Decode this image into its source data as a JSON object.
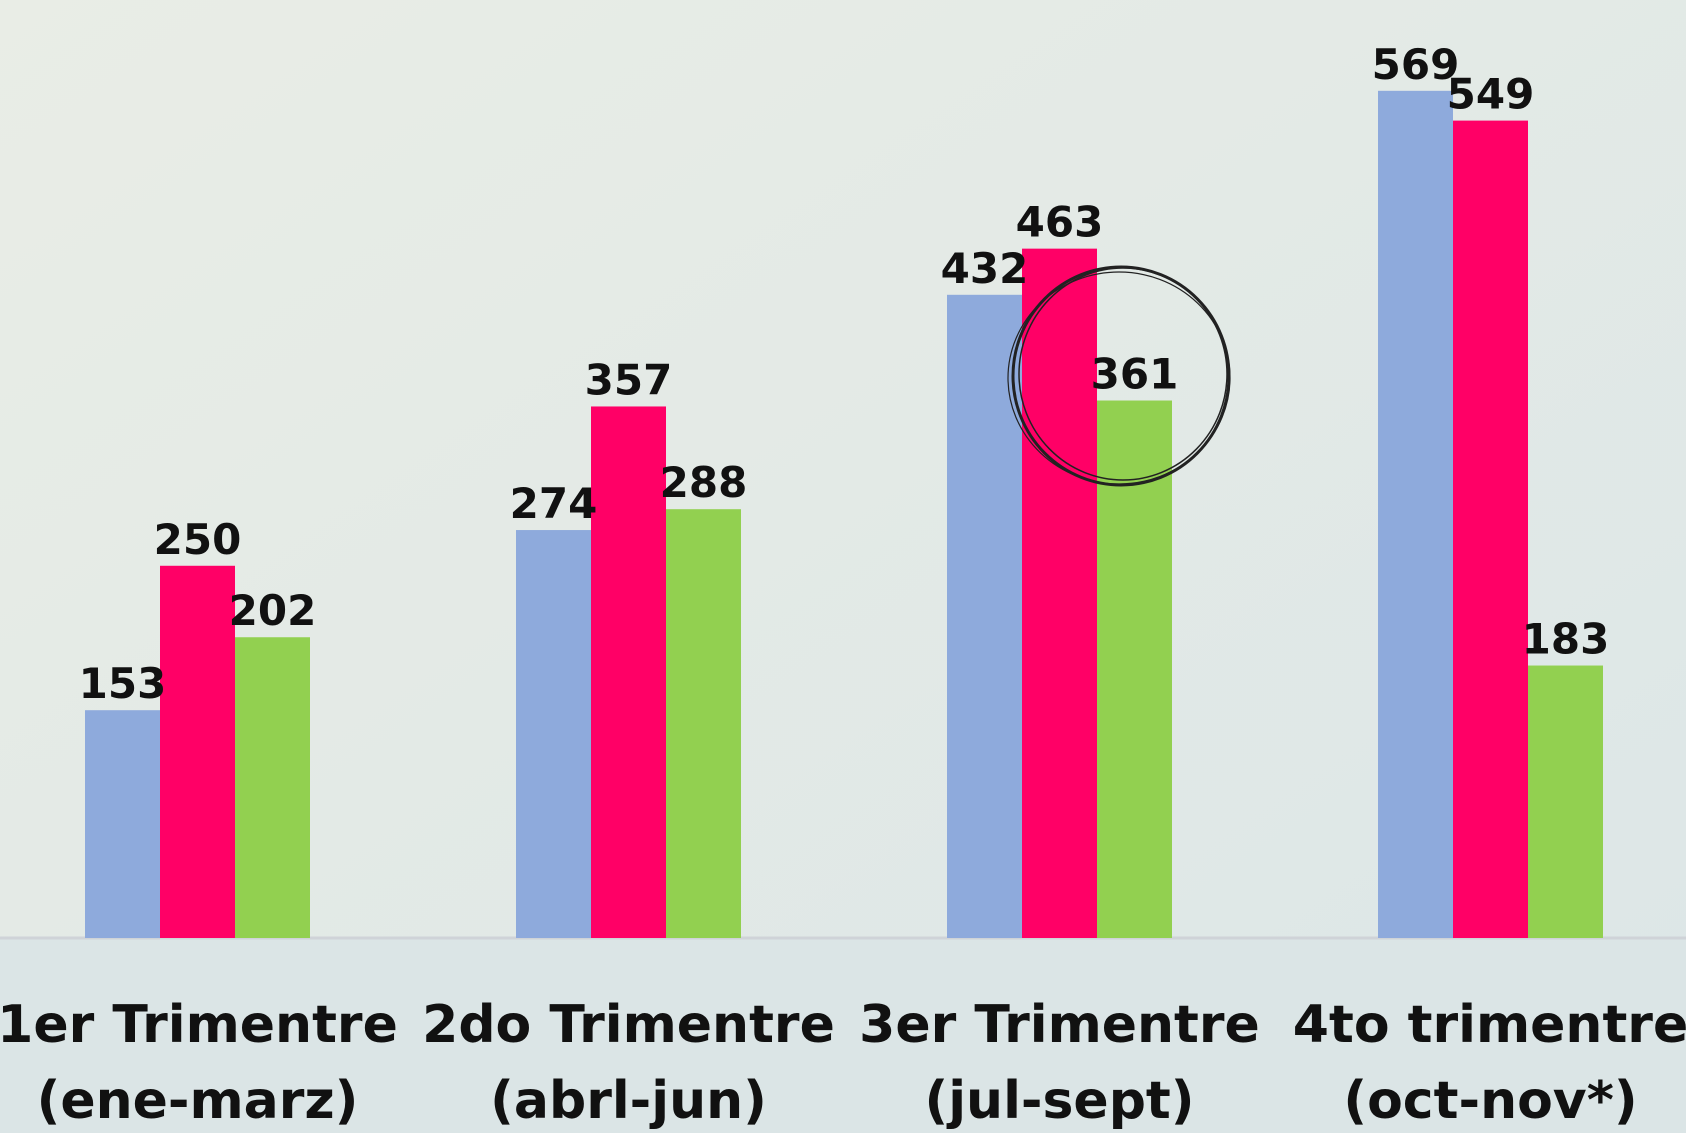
{
  "chart_data": {
    "type": "bar",
    "categories": [
      [
        "1er Trimentre",
        "(ene-marz)"
      ],
      [
        "2do Trimentre",
        "(abrl-jun)"
      ],
      [
        "3er Trimentre",
        "(jul-sept)"
      ],
      [
        "4to trimentre",
        "(oct-nov*)"
      ]
    ],
    "series": [
      {
        "color": "#8eaadc",
        "values": [
          153,
          274,
          432,
          569
        ]
      },
      {
        "color": "#ff0066",
        "values": [
          250,
          357,
          463,
          549
        ]
      },
      {
        "color": "#92d050",
        "values": [
          202,
          288,
          361,
          183
        ]
      }
    ],
    "ylim": [
      0,
      630
    ]
  }
}
